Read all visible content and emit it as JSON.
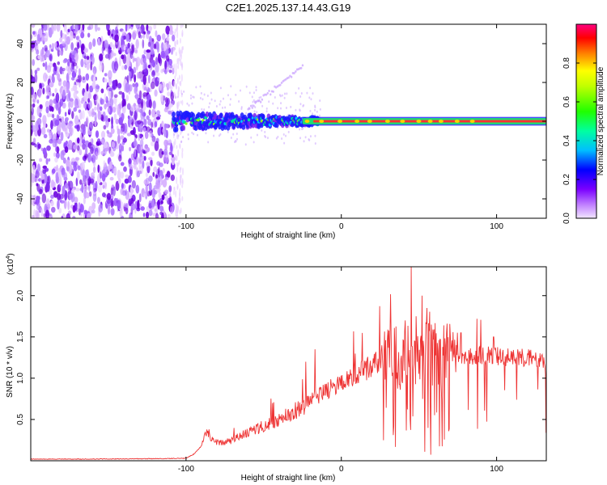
{
  "title": "C2E1.2025.137.14.43.G19",
  "chart_data": [
    {
      "type": "heatmap",
      "name": "spectrogram",
      "xlabel": "Height of straight line (km)",
      "ylabel": "Frequency (Hz)",
      "xlim": [
        -200,
        132
      ],
      "ylim": [
        -50,
        50
      ],
      "xticks": [
        -100,
        0,
        100
      ],
      "xtick_labels": [
        "-100",
        "0",
        "100"
      ],
      "yticks": [
        -40,
        -20,
        0,
        20,
        40
      ],
      "ytick_labels": [
        "-40",
        "-20",
        "0",
        "20",
        "40"
      ],
      "noise_region_km": [
        -200,
        -108
      ],
      "signal_region_km": [
        -108,
        132
      ],
      "signal_center_hz": 0,
      "colorbar": {
        "label": "Normalized spectral amplitude",
        "range": [
          0,
          1
        ],
        "ticks": [
          0.0,
          0.2,
          0.4,
          0.6,
          0.8
        ],
        "tick_labels": [
          "0.0",
          "0.2",
          "0.4",
          "0.6",
          "0.8"
        ]
      }
    },
    {
      "type": "line",
      "name": "snr",
      "xlabel": "Height of straight line (km)",
      "ylabel": "SNR (10 * v/v)",
      "scale_label": "(x10",
      "scale_exp": "4",
      "scale_close": ")",
      "xlim": [
        -200,
        132
      ],
      "ylim": [
        0,
        23500
      ],
      "xticks": [
        -100,
        0,
        100
      ],
      "xtick_labels": [
        "-100",
        "0",
        "100"
      ],
      "yticks": [
        5000,
        10000,
        15000,
        20000
      ],
      "ytick_labels": [
        "0.5",
        "1.0",
        "1.5",
        "2.0"
      ],
      "color": "#ee3333",
      "x": [
        -200,
        -160,
        -120,
        -100,
        -95,
        -90,
        -87,
        -85,
        -82,
        -80,
        -75,
        -70,
        -65,
        -60,
        -55,
        -50,
        -45,
        -40,
        -35,
        -30,
        -25,
        -20,
        -15,
        -10,
        -5,
        0,
        5,
        10,
        15,
        20,
        25,
        30,
        35,
        40,
        45,
        50,
        55,
        60,
        65,
        70,
        75,
        80,
        85,
        90,
        95,
        100,
        105,
        110,
        115,
        120,
        125,
        130,
        132
      ],
      "values": [
        200,
        200,
        250,
        300,
        800,
        1800,
        3500,
        2800,
        2500,
        2300,
        2200,
        2500,
        3000,
        3500,
        3800,
        4200,
        4500,
        5000,
        5500,
        6000,
        6600,
        7200,
        7800,
        8400,
        9000,
        9500,
        10000,
        10500,
        11000,
        11500,
        12000,
        12300,
        12600,
        12700,
        12800,
        12900,
        13000,
        12900,
        12800,
        12800,
        12800,
        12700,
        12700,
        12700,
        12700,
        12700,
        12600,
        12600,
        12600,
        12500,
        12500,
        12400,
        10000
      ],
      "spikes": [
        {
          "x": 45,
          "value": 23500
        },
        {
          "x": 52,
          "value": 20000
        },
        {
          "x": 55,
          "value": 18500
        },
        {
          "x": 48,
          "value": 17500
        },
        {
          "x": 41,
          "value": 17000
        },
        {
          "x": 58,
          "value": 16500
        },
        {
          "x": 77,
          "value": 15500
        },
        {
          "x": 98,
          "value": 15000
        },
        {
          "x": -17,
          "value": 13500
        },
        {
          "x": -23,
          "value": 12000
        }
      ]
    }
  ]
}
